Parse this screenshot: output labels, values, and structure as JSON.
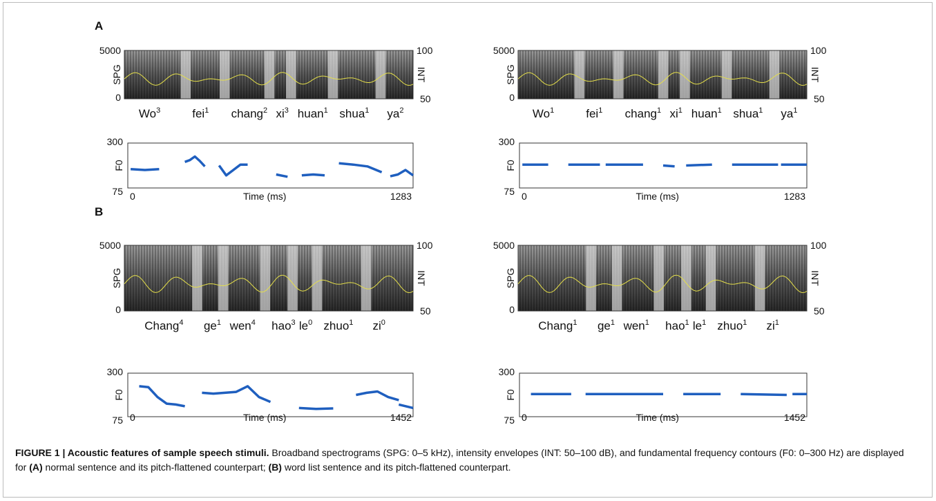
{
  "panels": [
    {
      "label": "A",
      "plots": [
        {
          "syllables": [
            {
              "text": "Wo",
              "tone": "3"
            },
            {
              "text": "fei",
              "tone": "1"
            },
            {
              "text": "chang",
              "tone": "2"
            },
            {
              "text": "xi",
              "tone": "3"
            },
            {
              "text": "huan",
              "tone": "1"
            },
            {
              "text": "shua",
              "tone": "1"
            },
            {
              "text": "ya",
              "tone": "2"
            }
          ],
          "spg_label": "SPG",
          "spg_ticks": [
            5000,
            0
          ],
          "int_label": "INT",
          "int_ticks": [
            100,
            50
          ],
          "f0_label": "F0",
          "f0_ticks": [
            300,
            75
          ],
          "time_label": "Time (ms)",
          "time_ticks": [
            0,
            1283
          ]
        },
        {
          "syllables": [
            {
              "text": "Wo",
              "tone": "1"
            },
            {
              "text": "fei",
              "tone": "1"
            },
            {
              "text": "chang",
              "tone": "1"
            },
            {
              "text": "xi",
              "tone": "1"
            },
            {
              "text": "huan",
              "tone": "1"
            },
            {
              "text": "shua",
              "tone": "1"
            },
            {
              "text": "ya",
              "tone": "1"
            }
          ],
          "spg_label": "SPG",
          "spg_ticks": [
            5000,
            0
          ],
          "int_label": "INT",
          "int_ticks": [
            100,
            50
          ],
          "f0_label": "F0",
          "f0_ticks": [
            300,
            75
          ],
          "time_label": "Time (ms)",
          "time_ticks": [
            0,
            1283
          ]
        }
      ]
    },
    {
      "label": "B",
      "plots": [
        {
          "syllables": [
            {
              "text": "Chang",
              "tone": "4"
            },
            {
              "text": "ge",
              "tone": "1"
            },
            {
              "text": "wen",
              "tone": "4"
            },
            {
              "text": "hao",
              "tone": "3"
            },
            {
              "text": "le",
              "tone": "0"
            },
            {
              "text": "zhuo",
              "tone": "1"
            },
            {
              "text": "zi",
              "tone": "0"
            }
          ],
          "spg_label": "SPG",
          "spg_ticks": [
            5000,
            0
          ],
          "int_label": "INT",
          "int_ticks": [
            100,
            50
          ],
          "f0_label": "F0",
          "f0_ticks": [
            300,
            75
          ],
          "time_label": "Time (ms)",
          "time_ticks": [
            0,
            1452
          ]
        },
        {
          "syllables": [
            {
              "text": "Chang",
              "tone": "1"
            },
            {
              "text": "ge",
              "tone": "1"
            },
            {
              "text": "wen",
              "tone": "1"
            },
            {
              "text": "hao",
              "tone": "1"
            },
            {
              "text": "le",
              "tone": "1"
            },
            {
              "text": "zhuo",
              "tone": "1"
            },
            {
              "text": "zi",
              "tone": "1"
            }
          ],
          "spg_label": "SPG",
          "spg_ticks": [
            5000,
            0
          ],
          "int_label": "INT",
          "int_ticks": [
            100,
            50
          ],
          "f0_label": "F0",
          "f0_ticks": [
            300,
            75
          ],
          "time_label": "Time (ms)",
          "time_ticks": [
            0,
            1452
          ]
        }
      ]
    }
  ],
  "caption": {
    "title": "FIGURE 1 | Acoustic features of sample speech stimuli.",
    "parts": [
      " Broadband spectrograms (SPG: 0–5 kHz), intensity envelopes (INT: 50–100 dB), and fundamental frequency contours (F0: 0–300 Hz) are displayed for ",
      "(A)",
      " normal sentence and its pitch-flattened counterpart; ",
      "(B)",
      " word list sentence and its pitch-flattened counterpart."
    ]
  }
}
